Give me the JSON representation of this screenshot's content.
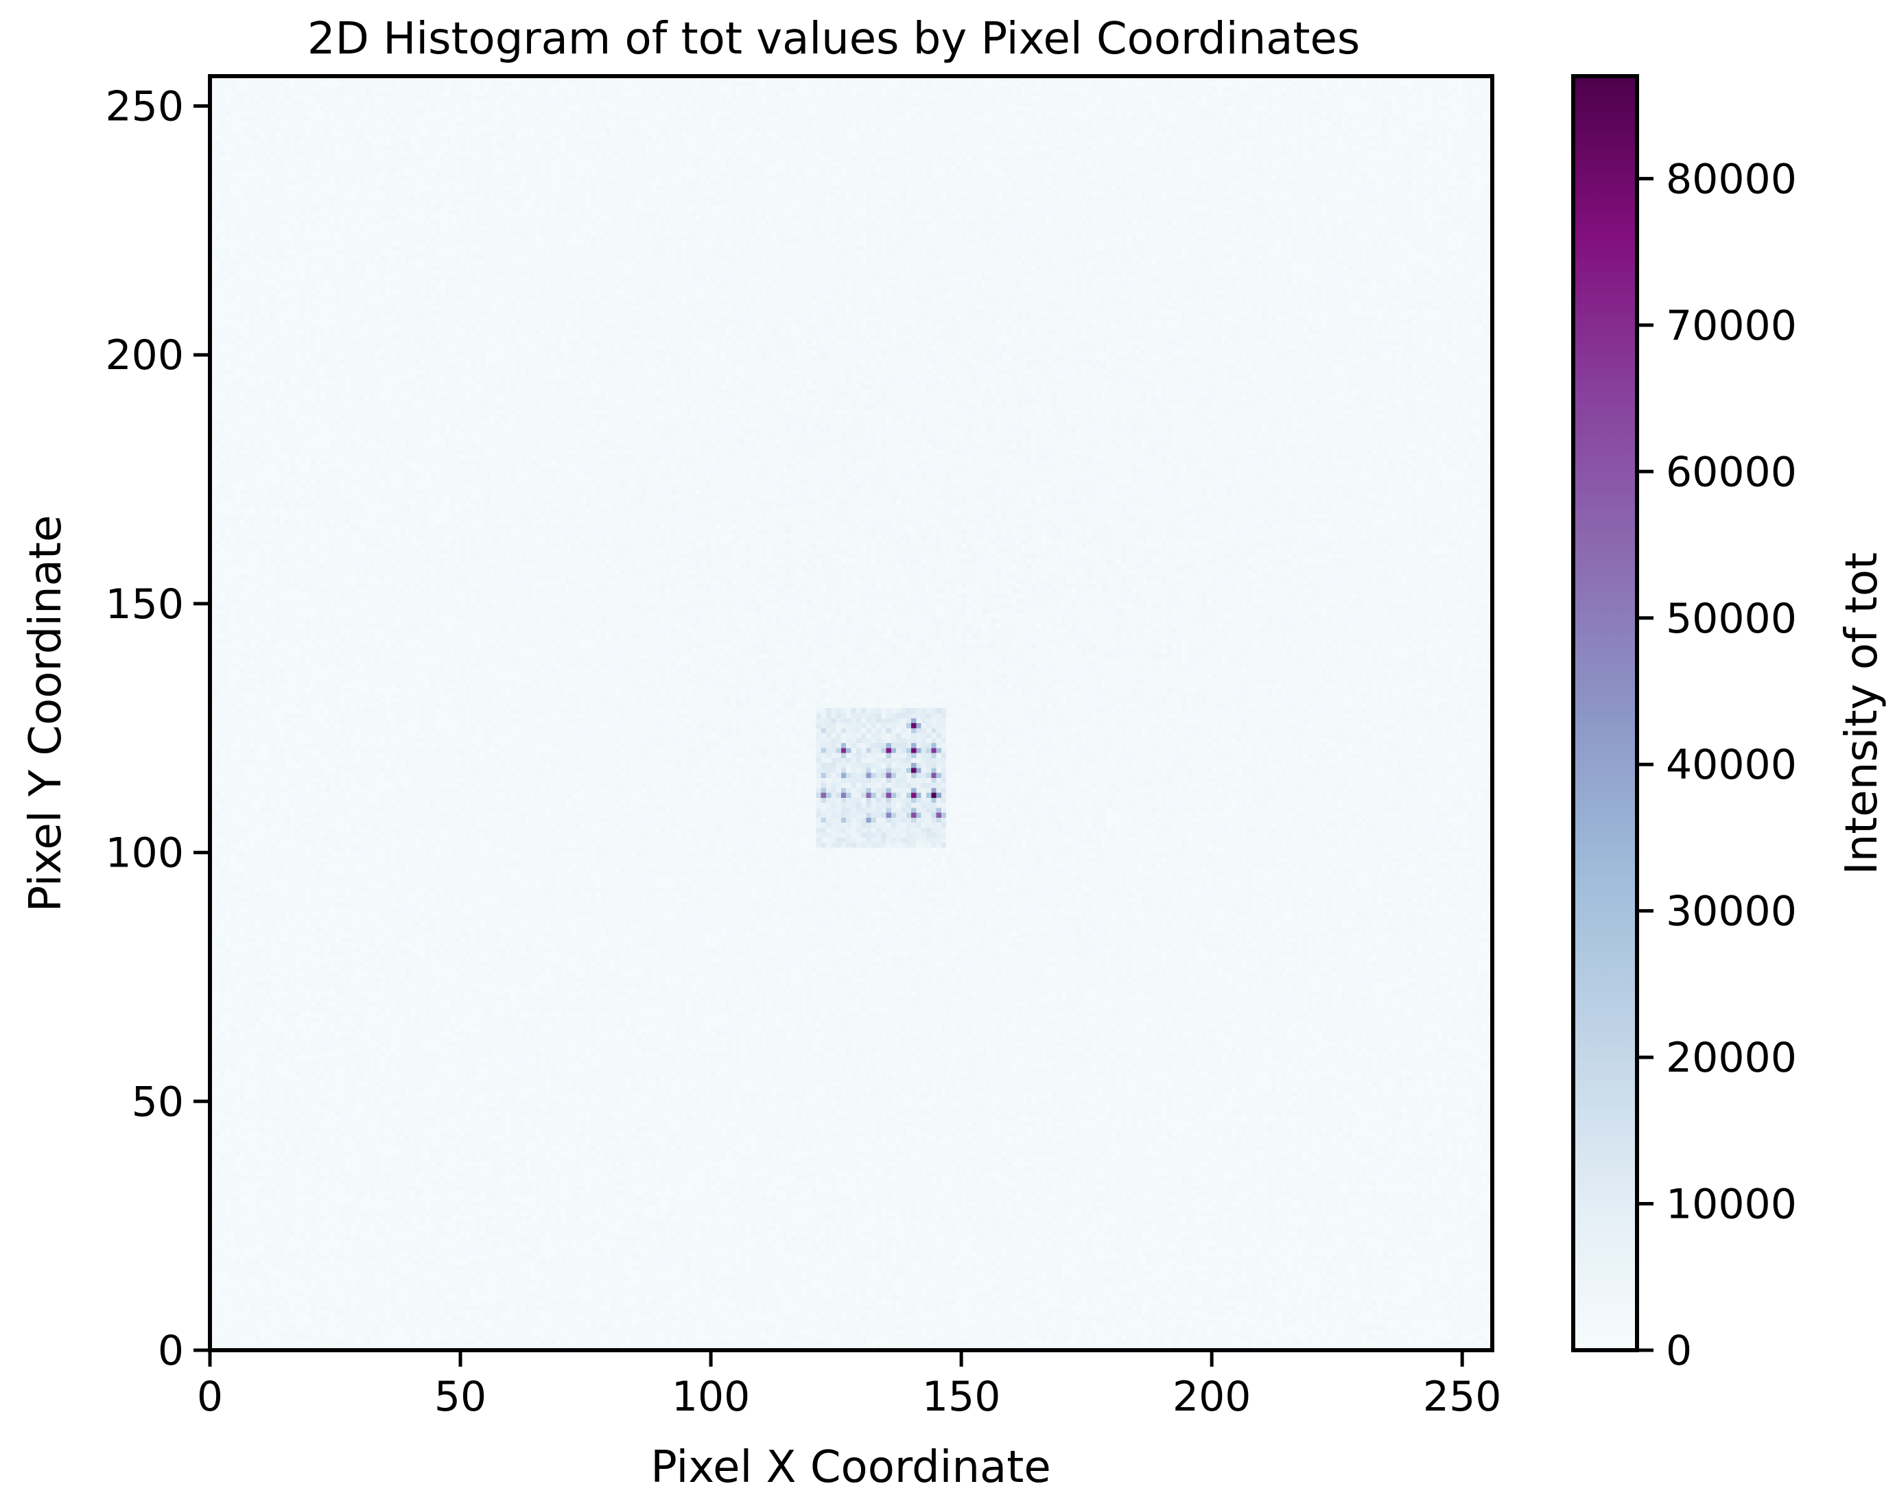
{
  "chart_data": {
    "type": "heatmap",
    "title": "2D Histogram of tot values by Pixel Coordinates",
    "xlabel": "Pixel X Coordinate",
    "ylabel": "Pixel Y Coordinate",
    "xlim": [
      0,
      256
    ],
    "ylim": [
      0,
      256
    ],
    "x_ticks": [
      0,
      50,
      100,
      150,
      200,
      250
    ],
    "y_ticks": [
      0,
      50,
      100,
      150,
      200,
      250
    ],
    "grid_size": [
      256,
      256
    ],
    "colormap": "BuPu",
    "colorbar": {
      "label": "Intensity of tot",
      "range": [
        0,
        87000
      ],
      "ticks": [
        0,
        10000,
        20000,
        30000,
        40000,
        50000,
        60000,
        70000,
        80000
      ],
      "tick_labels": [
        "0",
        "10000",
        "20000",
        "30000",
        "40000",
        "50000",
        "60000",
        "70000",
        "80000"
      ]
    },
    "background_intensity": 1200,
    "hotspot_region": {
      "x_range": [
        121,
        146
      ],
      "y_range": [
        101,
        128
      ],
      "base_intensity": 9000
    },
    "peaks": [
      {
        "x": 122,
        "y": 124,
        "value": 18000
      },
      {
        "x": 126,
        "y": 124,
        "value": 14000
      },
      {
        "x": 131,
        "y": 124,
        "value": 12000
      },
      {
        "x": 135,
        "y": 124,
        "value": 16000
      },
      {
        "x": 140,
        "y": 125,
        "value": 80000
      },
      {
        "x": 144,
        "y": 124,
        "value": 15000
      },
      {
        "x": 122,
        "y": 120,
        "value": 22000
      },
      {
        "x": 126,
        "y": 120,
        "value": 70000
      },
      {
        "x": 131,
        "y": 120,
        "value": 20000
      },
      {
        "x": 135,
        "y": 120,
        "value": 74000
      },
      {
        "x": 140,
        "y": 120,
        "value": 78000
      },
      {
        "x": 144,
        "y": 120,
        "value": 68000
      },
      {
        "x": 122,
        "y": 115,
        "value": 24000
      },
      {
        "x": 126,
        "y": 115,
        "value": 36000
      },
      {
        "x": 131,
        "y": 115,
        "value": 42000
      },
      {
        "x": 135,
        "y": 115,
        "value": 52000
      },
      {
        "x": 140,
        "y": 116,
        "value": 82000
      },
      {
        "x": 144,
        "y": 115,
        "value": 60000
      },
      {
        "x": 122,
        "y": 111,
        "value": 56000
      },
      {
        "x": 126,
        "y": 111,
        "value": 50000
      },
      {
        "x": 131,
        "y": 111,
        "value": 54000
      },
      {
        "x": 135,
        "y": 111,
        "value": 62000
      },
      {
        "x": 140,
        "y": 111,
        "value": 76000
      },
      {
        "x": 144,
        "y": 111,
        "value": 87000
      },
      {
        "x": 122,
        "y": 106,
        "value": 20000
      },
      {
        "x": 126,
        "y": 106,
        "value": 26000
      },
      {
        "x": 131,
        "y": 106,
        "value": 40000
      },
      {
        "x": 135,
        "y": 107,
        "value": 46000
      },
      {
        "x": 140,
        "y": 107,
        "value": 62000
      },
      {
        "x": 145,
        "y": 107,
        "value": 58000
      }
    ],
    "colors": {
      "cmap_stops": [
        "#f7fcfd",
        "#e0ecf4",
        "#bfd3e6",
        "#9ebcda",
        "#8c96c6",
        "#8c6bb1",
        "#88419d",
        "#810f7c",
        "#4d004b"
      ],
      "axis": "#000000",
      "text": "#000000",
      "background": "#ffffff"
    }
  }
}
